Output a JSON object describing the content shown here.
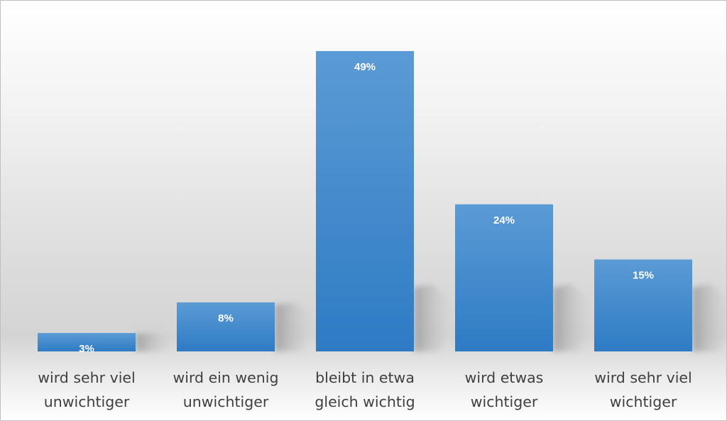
{
  "chart_data": {
    "type": "bar",
    "categories": [
      [
        "wird sehr viel",
        "unwichtiger"
      ],
      [
        "wird ein wenig",
        "unwichtiger"
      ],
      [
        "bleibt in etwa",
        "gleich wichtig"
      ],
      [
        "wird etwas",
        "wichtiger"
      ],
      [
        "wird sehr viel",
        "wichtiger"
      ]
    ],
    "values": [
      3,
      8,
      49,
      24,
      15
    ],
    "labels": [
      "3%",
      "8%",
      "49%",
      "24%",
      "15%"
    ],
    "title": "",
    "xlabel": "",
    "ylabel": "",
    "ylim": [
      0,
      50
    ],
    "grid": false,
    "legend": "none",
    "colors": {
      "bar_top": "#5b9bd5",
      "bar_bottom": "#2e7bc4",
      "label": "#ffffff",
      "tick_text": "#3f3f3f"
    }
  }
}
